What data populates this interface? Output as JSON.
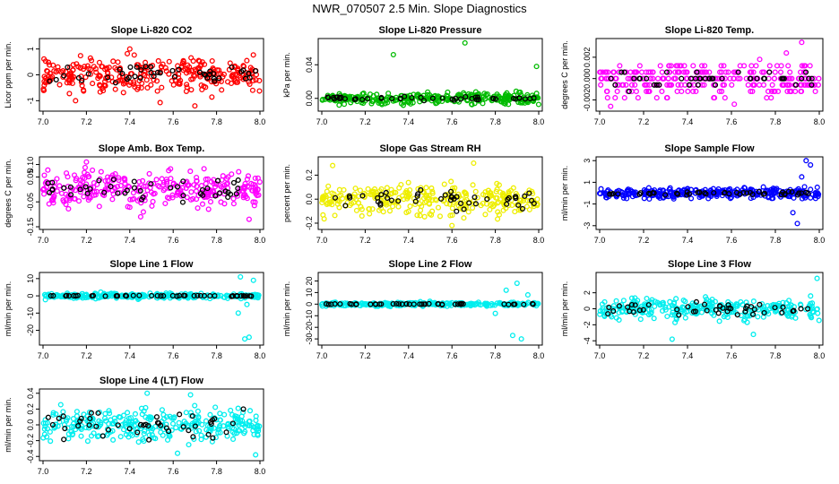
{
  "page_title": "NWR_070507  2.5 Min. Slope Diagnostics",
  "x_ticks": [
    "7.0",
    "7.2",
    "7.4",
    "7.6",
    "7.8",
    "8.0"
  ],
  "chart_data": [
    {
      "type": "scatter",
      "title": "Slope Li-820 CO2",
      "ylabel": "Licor ppm per min.",
      "xlim": [
        7.0,
        8.0
      ],
      "ylim": [
        -1.3,
        1.3
      ],
      "yticks": [
        "-1",
        "0",
        "1"
      ],
      "ytick_values": [
        -1,
        0,
        1
      ],
      "color": "#ff0000",
      "outlier_color": "#000000",
      "spread": 0.55,
      "ref_spread": 0.35,
      "extremes": [
        [
          7.15,
          -1.0
        ],
        [
          7.4,
          1.0
        ],
        [
          7.7,
          -1.2
        ]
      ]
    },
    {
      "type": "scatter",
      "title": "Slope Li-820 Pressure",
      "ylabel": "kPa per min.",
      "xlim": [
        7.0,
        8.0
      ],
      "ylim": [
        -0.012,
        0.068
      ],
      "yticks": [
        "0.00",
        "0.04"
      ],
      "ytick_values": [
        0,
        0.04
      ],
      "color": "#00bb00",
      "outlier_color": "#000000",
      "spread": 0.005,
      "ref_spread": 0.002,
      "extremes": [
        [
          7.33,
          0.052
        ],
        [
          7.66,
          0.066
        ],
        [
          7.99,
          0.038
        ],
        [
          7.08,
          -0.008
        ]
      ]
    },
    {
      "type": "scatter",
      "title": "Slope Li-820 Temp.",
      "ylabel": "degrees C per min.",
      "xlim": [
        7.0,
        8.0
      ],
      "ylim": [
        -0.0028,
        0.0035
      ],
      "yticks": [
        "-0.002",
        "0.000",
        "0.002"
      ],
      "ytick_values": [
        -0.002,
        0,
        0.002
      ],
      "color": "#ff00ff",
      "outlier_color": "#000000",
      "spread": 0.0012,
      "ref_spread": 0.0006,
      "quantized": 0.0006,
      "extremes": [
        [
          7.92,
          0.0034
        ],
        [
          7.85,
          0.0024
        ],
        [
          7.05,
          -0.0026
        ]
      ]
    },
    {
      "type": "scatter",
      "title": "Slope Amb. Box Temp.",
      "ylabel": "degrees C per min.",
      "xlim": [
        7.0,
        8.0
      ],
      "ylim": [
        -0.15,
        0.12
      ],
      "yticks": [
        "-0.15",
        "-0.05",
        "0.05",
        "0.10"
      ],
      "ytick_values": [
        -0.15,
        -0.05,
        0.05,
        0.1
      ],
      "color": "#ff00ff",
      "outlier_color": "#000000",
      "spread": 0.055,
      "ref_spread": 0.04,
      "extremes": [
        [
          7.2,
          0.11
        ],
        [
          7.45,
          -0.11
        ],
        [
          7.95,
          -0.12
        ]
      ]
    },
    {
      "type": "scatter",
      "title": "Slope Gas Stream RH",
      "ylabel": "percent per min.",
      "xlim": [
        7.0,
        8.0
      ],
      "ylim": [
        -0.23,
        0.33
      ],
      "yticks": [
        "-0.2",
        "0.0",
        "0.2"
      ],
      "ytick_values": [
        -0.2,
        0,
        0.2
      ],
      "color": "#eeee00",
      "outlier_color": "#000000",
      "spread": 0.1,
      "ref_spread": 0.07,
      "extremes": [
        [
          7.7,
          0.3
        ],
        [
          7.6,
          -0.22
        ],
        [
          7.05,
          0.28
        ]
      ]
    },
    {
      "type": "scatter",
      "title": "Slope Sample Flow",
      "ylabel": "ml/min per min.",
      "xlim": [
        7.0,
        8.0
      ],
      "ylim": [
        -3.1,
        3.1
      ],
      "yticks": [
        "-3",
        "-1",
        "1",
        "3"
      ],
      "ytick_values": [
        -3,
        -1,
        1,
        3
      ],
      "color": "#0000ff",
      "outlier_color": "#000000",
      "spread": 0.35,
      "ref_spread": 0.15,
      "extremes": [
        [
          7.94,
          3.0
        ],
        [
          7.96,
          2.6
        ],
        [
          7.9,
          -2.8
        ],
        [
          7.88,
          -1.8
        ],
        [
          7.92,
          1.5
        ]
      ]
    },
    {
      "type": "scatter",
      "title": "Slope Line 1 Flow",
      "ylabel": "ml/min per min.",
      "xlim": [
        7.0,
        8.0
      ],
      "ylim": [
        -27,
        12
      ],
      "yticks": [
        "-20",
        "-10",
        "0",
        "10"
      ],
      "ytick_values": [
        -20,
        -10,
        0,
        10
      ],
      "color": "#00eeee",
      "outlier_color": "#000000",
      "spread": 1.2,
      "ref_spread": 0.2,
      "extremes": [
        [
          7.93,
          -25
        ],
        [
          7.95,
          -24
        ],
        [
          7.9,
          -10
        ],
        [
          7.91,
          11
        ],
        [
          7.97,
          9
        ],
        [
          7.94,
          -5
        ]
      ]
    },
    {
      "type": "scatter",
      "title": "Slope Line 2 Flow",
      "ylabel": "ml/min per min.",
      "xlim": [
        7.0,
        8.0
      ],
      "ylim": [
        -33,
        25
      ],
      "yticks": [
        "-30",
        "-20",
        "-10",
        "0",
        "10",
        "20"
      ],
      "ytick_values": [
        -30,
        -20,
        -10,
        0,
        10,
        20
      ],
      "color": "#00eeee",
      "outlier_color": "#000000",
      "spread": 1.2,
      "ref_spread": 0.4,
      "extremes": [
        [
          7.92,
          -30
        ],
        [
          7.88,
          -27
        ],
        [
          7.9,
          18
        ],
        [
          7.85,
          12
        ],
        [
          7.95,
          8
        ],
        [
          7.8,
          -8
        ]
      ]
    },
    {
      "type": "scatter",
      "title": "Slope Line 3 Flow",
      "ylabel": "ml/min per min.",
      "xlim": [
        7.0,
        8.0
      ],
      "ylim": [
        -4.2,
        4.2
      ],
      "yticks": [
        "-4",
        "-2",
        "0",
        "2"
      ],
      "ytick_values": [
        -4,
        -2,
        0,
        2
      ],
      "color": "#00eeee",
      "outlier_color": "#000000",
      "spread": 1.0,
      "ref_spread": 0.8,
      "extremes": [
        [
          7.33,
          -3.8
        ],
        [
          7.99,
          3.8
        ],
        [
          7.7,
          -3.2
        ]
      ]
    },
    {
      "type": "scatter",
      "title": "Slope Line 4 (LT) Flow",
      "ylabel": "ml/min per min.",
      "xlim": [
        7.0,
        8.0
      ],
      "ylim": [
        -0.42,
        0.42
      ],
      "yticks": [
        "-0.4",
        "-0.2",
        "0.0",
        "0.2",
        "0.4"
      ],
      "ytick_values": [
        -0.4,
        -0.2,
        0,
        0.2,
        0.4
      ],
      "color": "#00eeee",
      "outlier_color": "#000000",
      "spread": 0.15,
      "ref_spread": 0.15,
      "extremes": [
        [
          7.48,
          0.4
        ],
        [
          7.68,
          0.38
        ],
        [
          7.98,
          -0.38
        ],
        [
          7.62,
          -0.36
        ]
      ]
    }
  ]
}
